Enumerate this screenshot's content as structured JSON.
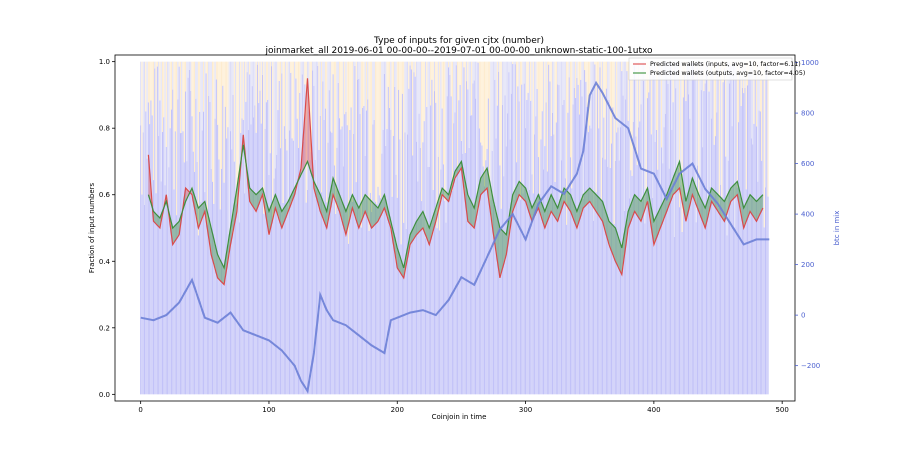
{
  "chart_data": {
    "type": "line",
    "title": "Type of inputs for given cjtx (number)",
    "subtitle": "joinmarket_all 2019-06-01 00-00-00--2019-07-01 00-00-00_unknown-static-100-1utxo",
    "xlabel": "Coinjoin in time",
    "ylabel": "Fraction of input numbers",
    "y2label": "btc in mix",
    "xlim": [
      -20,
      510
    ],
    "ylim": [
      -0.02,
      1.02
    ],
    "y2lim": [
      -340,
      1030
    ],
    "xticks": [
      0,
      100,
      200,
      300,
      400,
      500
    ],
    "yticks": [
      0.0,
      0.2,
      0.4,
      0.6,
      0.8,
      1.0
    ],
    "y2ticks": [
      -200,
      0,
      200,
      400,
      600,
      800,
      1000
    ],
    "legend_position": "top-right",
    "legend": [
      {
        "label": "Predicted wallets (inputs, avg=10, factor=6.11)",
        "color": "#e05a5a"
      },
      {
        "label": "Predicted wallets (outputs, avg=10, factor=4.05)",
        "color": "#4a9a4a"
      }
    ],
    "bars": {
      "description_colors": {
        "lower": "#8a8af0",
        "upper_light": "#fde6c0",
        "upper_alt": "#d4d4f4"
      },
      "count": 490,
      "typical_lower_range": [
        0.45,
        1.0
      ]
    },
    "series": [
      {
        "name": "Predicted wallets (inputs, avg=10, factor=6.11)",
        "color": "#d94b4b",
        "x": [
          6,
          10,
          15,
          20,
          25,
          30,
          35,
          40,
          45,
          50,
          55,
          60,
          65,
          70,
          75,
          80,
          85,
          90,
          95,
          100,
          105,
          110,
          115,
          120,
          125,
          130,
          135,
          140,
          145,
          150,
          155,
          160,
          165,
          170,
          175,
          180,
          185,
          190,
          195,
          200,
          205,
          210,
          215,
          220,
          225,
          230,
          235,
          240,
          245,
          250,
          255,
          260,
          265,
          270,
          275,
          280,
          285,
          290,
          295,
          300,
          305,
          310,
          315,
          320,
          325,
          330,
          335,
          340,
          345,
          350,
          355,
          360,
          365,
          370,
          375,
          380,
          385,
          390,
          395,
          400,
          405,
          410,
          415,
          420,
          425,
          430,
          435,
          440,
          445,
          450,
          455,
          460,
          465,
          470,
          475,
          480,
          485
        ],
        "y": [
          0.72,
          0.52,
          0.5,
          0.6,
          0.45,
          0.48,
          0.62,
          0.6,
          0.5,
          0.55,
          0.42,
          0.35,
          0.33,
          0.45,
          0.55,
          0.78,
          0.58,
          0.55,
          0.6,
          0.48,
          0.56,
          0.5,
          0.55,
          0.6,
          0.68,
          0.95,
          0.62,
          0.55,
          0.5,
          0.6,
          0.55,
          0.48,
          0.56,
          0.5,
          0.55,
          0.5,
          0.52,
          0.56,
          0.5,
          0.38,
          0.35,
          0.45,
          0.48,
          0.5,
          0.45,
          0.52,
          0.6,
          0.58,
          0.65,
          0.68,
          0.52,
          0.5,
          0.6,
          0.62,
          0.48,
          0.35,
          0.42,
          0.55,
          0.6,
          0.58,
          0.52,
          0.56,
          0.5,
          0.55,
          0.52,
          0.58,
          0.55,
          0.5,
          0.56,
          0.58,
          0.55,
          0.52,
          0.45,
          0.4,
          0.36,
          0.5,
          0.55,
          0.52,
          0.58,
          0.45,
          0.5,
          0.55,
          0.6,
          0.62,
          0.52,
          0.6,
          0.55,
          0.5,
          0.58,
          0.55,
          0.52,
          0.58,
          0.6,
          0.5,
          0.55,
          0.52,
          0.56
        ]
      },
      {
        "name": "Predicted wallets (outputs, avg=10, factor=4.05)",
        "color": "#3e8f3e",
        "x": [
          6,
          10,
          15,
          20,
          25,
          30,
          35,
          40,
          45,
          50,
          55,
          60,
          65,
          70,
          75,
          80,
          85,
          90,
          95,
          100,
          105,
          110,
          115,
          120,
          125,
          130,
          135,
          140,
          145,
          150,
          155,
          160,
          165,
          170,
          175,
          180,
          185,
          190,
          195,
          200,
          205,
          210,
          215,
          220,
          225,
          230,
          235,
          240,
          245,
          250,
          255,
          260,
          265,
          270,
          275,
          280,
          285,
          290,
          295,
          300,
          305,
          310,
          315,
          320,
          325,
          330,
          335,
          340,
          345,
          350,
          355,
          360,
          365,
          370,
          375,
          380,
          385,
          390,
          395,
          400,
          405,
          410,
          415,
          420,
          425,
          430,
          435,
          440,
          445,
          450,
          455,
          460,
          465,
          470,
          475,
          480,
          485
        ],
        "y": [
          0.6,
          0.55,
          0.53,
          0.58,
          0.5,
          0.52,
          0.58,
          0.62,
          0.56,
          0.58,
          0.5,
          0.42,
          0.38,
          0.5,
          0.62,
          0.75,
          0.62,
          0.6,
          0.62,
          0.55,
          0.6,
          0.55,
          0.58,
          0.62,
          0.66,
          0.7,
          0.64,
          0.6,
          0.55,
          0.65,
          0.6,
          0.55,
          0.6,
          0.56,
          0.6,
          0.58,
          0.56,
          0.6,
          0.52,
          0.44,
          0.38,
          0.48,
          0.52,
          0.55,
          0.5,
          0.56,
          0.62,
          0.6,
          0.67,
          0.7,
          0.6,
          0.56,
          0.65,
          0.68,
          0.58,
          0.5,
          0.48,
          0.6,
          0.64,
          0.62,
          0.56,
          0.6,
          0.55,
          0.6,
          0.56,
          0.62,
          0.6,
          0.55,
          0.6,
          0.62,
          0.6,
          0.58,
          0.52,
          0.5,
          0.44,
          0.55,
          0.6,
          0.58,
          0.62,
          0.52,
          0.56,
          0.6,
          0.65,
          0.7,
          0.58,
          0.65,
          0.6,
          0.56,
          0.62,
          0.6,
          0.58,
          0.62,
          0.64,
          0.56,
          0.6,
          0.58,
          0.6
        ]
      },
      {
        "name": "btc in mix",
        "color": "#6b7fd6",
        "axis": "right",
        "x": [
          0,
          10,
          20,
          30,
          40,
          50,
          60,
          70,
          80,
          90,
          100,
          110,
          120,
          125,
          130,
          135,
          140,
          145,
          150,
          160,
          170,
          180,
          190,
          195,
          200,
          210,
          220,
          230,
          240,
          250,
          260,
          270,
          280,
          290,
          300,
          310,
          320,
          330,
          340,
          345,
          350,
          355,
          360,
          370,
          380,
          390,
          400,
          410,
          420,
          430,
          440,
          450,
          460,
          470,
          480,
          490
        ],
        "y": [
          -10,
          -20,
          0,
          50,
          140,
          -10,
          -30,
          10,
          -60,
          -80,
          -100,
          -140,
          -200,
          -260,
          -300,
          -150,
          80,
          20,
          -20,
          -40,
          -80,
          -120,
          -150,
          -20,
          -10,
          10,
          20,
          0,
          60,
          150,
          120,
          230,
          340,
          400,
          300,
          440,
          510,
          480,
          560,
          650,
          870,
          920,
          880,
          780,
          740,
          580,
          560,
          460,
          560,
          600,
          500,
          440,
          360,
          280,
          300,
          300
        ]
      }
    ]
  }
}
